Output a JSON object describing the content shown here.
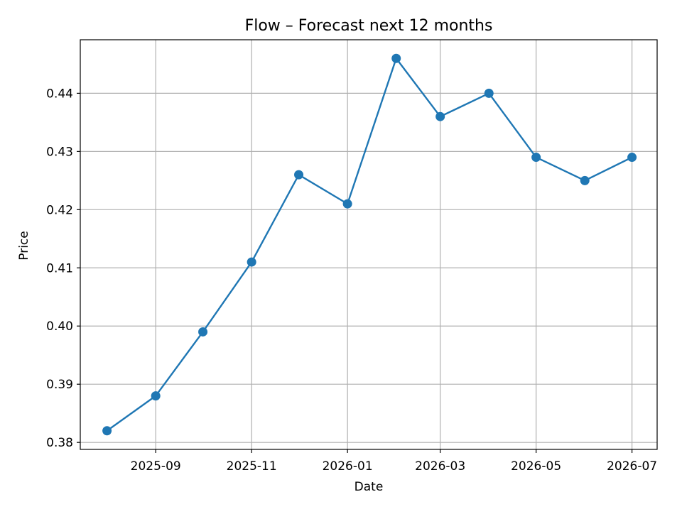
{
  "chart_data": {
    "type": "line",
    "title": "Flow – Forecast next 12 months",
    "xlabel": "Date",
    "ylabel": "Price",
    "x": [
      "2025-08-01",
      "2025-09-01",
      "2025-10-01",
      "2025-11-01",
      "2025-12-01",
      "2026-01-01",
      "2026-02-01",
      "2026-03-01",
      "2026-04-01",
      "2026-05-01",
      "2026-06-01",
      "2026-07-01"
    ],
    "series": [
      {
        "values": [
          0.382,
          0.388,
          0.399,
          0.411,
          0.426,
          0.421,
          0.446,
          0.436,
          0.44,
          0.429,
          0.425,
          0.429
        ],
        "color": "#1f77b4",
        "marker": "circle"
      }
    ],
    "x_ticks": [
      {
        "date": "2025-09-01",
        "label": "2025-09"
      },
      {
        "date": "2025-11-01",
        "label": "2025-11"
      },
      {
        "date": "2026-01-01",
        "label": "2026-01"
      },
      {
        "date": "2026-03-01",
        "label": "2026-03"
      },
      {
        "date": "2026-05-01",
        "label": "2026-05"
      },
      {
        "date": "2026-07-01",
        "label": "2026-07"
      }
    ],
    "y_ticks": [
      0.38,
      0.39,
      0.4,
      0.41,
      0.42,
      0.43,
      0.44
    ],
    "y_tick_labels": [
      "0.38",
      "0.39",
      "0.40",
      "0.41",
      "0.42",
      "0.43",
      "0.44"
    ],
    "xlim": [
      "2025-07-15",
      "2026-07-17"
    ],
    "ylim": [
      0.3788,
      0.4492
    ],
    "grid": true,
    "legend": "none"
  }
}
